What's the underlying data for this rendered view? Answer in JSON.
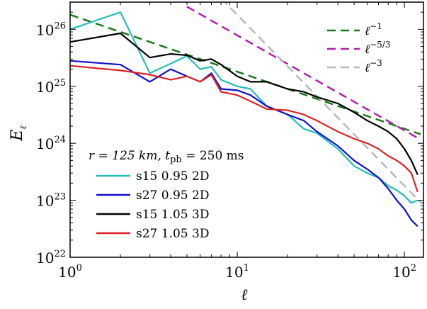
{
  "chart_data": {
    "type": "line",
    "xscale": "log",
    "yscale": "log",
    "xlim": [
      1,
      130
    ],
    "ylim": [
      1e+22,
      3e+26
    ],
    "xlabel": "ℓ",
    "ylabel": "E",
    "ylabel_sub": "ℓ",
    "x_ticks": [
      {
        "value": 1,
        "base": "10",
        "exp": "0"
      },
      {
        "value": 10,
        "base": "10",
        "exp": "1"
      },
      {
        "value": 100,
        "base": "10",
        "exp": "2"
      }
    ],
    "y_ticks": [
      {
        "value": 1e+22,
        "base": "10",
        "exp": "22"
      },
      {
        "value": 1e+23,
        "base": "10",
        "exp": "23"
      },
      {
        "value": 1e+24,
        "base": "10",
        "exp": "24"
      },
      {
        "value": 1e+25,
        "base": "10",
        "exp": "25"
      },
      {
        "value": 1e+26,
        "base": "10",
        "exp": "26"
      }
    ],
    "annotation": {
      "r_text": "r = 125 km, ",
      "t_text": "t",
      "t_sub": "pb",
      "t_rest": " = 250 ms"
    },
    "reference_lines": [
      {
        "name": "ℓ",
        "exp": "−1",
        "slope": -1,
        "x": [
          1,
          125
        ],
        "y": [
          1.8e+26,
          1.44e+24
        ],
        "color": "#1a7a1a"
      },
      {
        "name": "ℓ",
        "exp": "−5/3",
        "slope": -1.667,
        "x": [
          5,
          125
        ],
        "y": [
          2.5e+26,
          1.16e+24
        ],
        "color": "#b31fb3"
      },
      {
        "name": "ℓ",
        "exp": "−3",
        "slope": -3,
        "x": [
          8,
          125
        ],
        "y": [
          3.5e+26,
          9.2e+22
        ],
        "color": "#b8b8b8"
      }
    ],
    "series": [
      {
        "name": "s15 0.95 2D",
        "color": "#22bcb9",
        "x": [
          1,
          2,
          3,
          4,
          5,
          6,
          7,
          8,
          10,
          12,
          15,
          20,
          25,
          30,
          40,
          50,
          60,
          70,
          80,
          90,
          100,
          110,
          120
        ],
        "y": [
          1e+26,
          2e+26,
          1.7e+25,
          2.5e+25,
          3.4e+25,
          2e+25,
          2.2e+25,
          1.3e+25,
          1e+25,
          9e+24,
          4.5e+24,
          3.2e+24,
          1.8e+24,
          1.5e+24,
          8e+23,
          4e+23,
          3e+23,
          2.5e+23,
          1.8e+23,
          1.5e+23,
          1.2e+23,
          9e+22,
          1e+23
        ]
      },
      {
        "name": "s27 0.95 2D",
        "color": "#1010cc",
        "x": [
          1,
          2,
          3,
          4,
          5,
          6,
          7,
          8,
          10,
          12,
          15,
          20,
          25,
          30,
          40,
          50,
          60,
          70,
          80,
          90,
          100,
          110,
          120
        ],
        "y": [
          2.8e+25,
          2.4e+25,
          1.2e+25,
          2e+25,
          1.5e+25,
          1.2e+25,
          1.7e+25,
          9e+24,
          8.5e+24,
          7e+24,
          4.5e+24,
          3.2e+24,
          2.5e+24,
          1.6e+24,
          9e+23,
          5e+23,
          3.5e+23,
          2.5e+23,
          1.6e+23,
          1e+23,
          7e+22,
          4.5e+22,
          3.5e+22
        ]
      },
      {
        "name": "s15 1.05 3D",
        "color": "#000000",
        "x": [
          1,
          2,
          3,
          4,
          5,
          6,
          7,
          8,
          10,
          12,
          15,
          20,
          25,
          30,
          40,
          50,
          60,
          70,
          80,
          90,
          100,
          110,
          120
        ],
        "y": [
          6e+25,
          8.5e+25,
          3.2e+25,
          3.7e+25,
          3.5e+25,
          2.8e+25,
          3e+25,
          2.4e+25,
          1.5e+25,
          1.2e+25,
          1.2e+25,
          9e+24,
          8e+24,
          6.5e+24,
          5e+24,
          3.5e+24,
          2.5e+24,
          2e+24,
          1.6e+24,
          1.2e+24,
          8e+23,
          5e+23,
          2.8e+23
        ]
      },
      {
        "name": "s27 1.05 3D",
        "color": "#dd2222",
        "x": [
          1,
          2,
          3,
          4,
          5,
          6,
          7,
          8,
          10,
          12,
          15,
          20,
          25,
          30,
          40,
          50,
          60,
          70,
          80,
          90,
          100,
          110,
          120
        ],
        "y": [
          2.3e+25,
          1.9e+25,
          1.6e+25,
          1.3e+25,
          1.5e+25,
          1.2e+25,
          1.6e+25,
          8e+24,
          7e+24,
          5.5e+24,
          4e+24,
          3.8e+24,
          3.2e+24,
          2.5e+24,
          1.6e+24,
          1.2e+24,
          1e+24,
          8e+23,
          6e+23,
          5e+23,
          4e+23,
          3e+23,
          1.4e+23
        ]
      }
    ]
  }
}
